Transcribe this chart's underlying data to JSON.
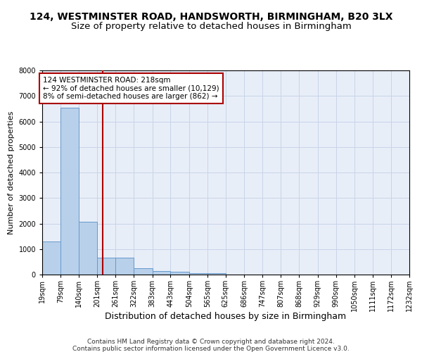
{
  "title": "124, WESTMINSTER ROAD, HANDSWORTH, BIRMINGHAM, B20 3LX",
  "subtitle": "Size of property relative to detached houses in Birmingham",
  "xlabel": "Distribution of detached houses by size in Birmingham",
  "ylabel": "Number of detached properties",
  "footnote1": "Contains HM Land Registry data © Crown copyright and database right 2024.",
  "footnote2": "Contains public sector information licensed under the Open Government Licence v3.0.",
  "bin_labels": [
    "19sqm",
    "79sqm",
    "140sqm",
    "201sqm",
    "261sqm",
    "322sqm",
    "383sqm",
    "443sqm",
    "504sqm",
    "565sqm",
    "625sqm",
    "686sqm",
    "747sqm",
    "807sqm",
    "868sqm",
    "929sqm",
    "990sqm",
    "1050sqm",
    "1111sqm",
    "1172sqm",
    "1232sqm"
  ],
  "bin_edges": [
    19,
    79,
    140,
    201,
    261,
    322,
    383,
    443,
    504,
    565,
    625,
    686,
    747,
    807,
    868,
    929,
    990,
    1050,
    1111,
    1172,
    1232
  ],
  "bar_heights": [
    1300,
    6550,
    2080,
    650,
    650,
    250,
    130,
    100,
    60,
    60,
    0,
    0,
    0,
    0,
    0,
    0,
    0,
    0,
    0,
    0
  ],
  "bar_color": "#b8d0ea",
  "bar_edge_color": "#6699cc",
  "grid_color": "#c8d4e8",
  "background_color": "#e8eef8",
  "property_size": 218,
  "vline_color": "#aa0000",
  "annotation_text": "124 WESTMINSTER ROAD: 218sqm\n← 92% of detached houses are smaller (10,129)\n8% of semi-detached houses are larger (862) →",
  "annotation_box_color": "#aa0000",
  "ylim": [
    0,
    8000
  ],
  "yticks": [
    0,
    1000,
    2000,
    3000,
    4000,
    5000,
    6000,
    7000,
    8000
  ],
  "title_fontsize": 10,
  "subtitle_fontsize": 9.5,
  "xlabel_fontsize": 9,
  "ylabel_fontsize": 8,
  "tick_fontsize": 7,
  "annotation_fontsize": 7.5,
  "footnote_fontsize": 6.5
}
